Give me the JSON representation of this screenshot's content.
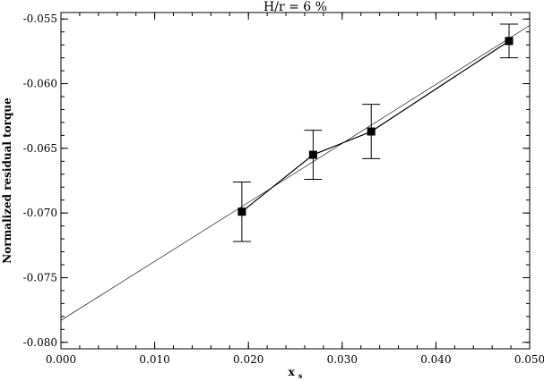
{
  "chart_data": {
    "type": "scatter",
    "title": "H/r = 6 %",
    "xlabel": "x",
    "xlabel_subscript": "s",
    "ylabel": "Normalized residual torque",
    "xlim": [
      0.0,
      0.05
    ],
    "ylim": [
      -0.0805,
      -0.0545
    ],
    "xticks": [
      0.0,
      0.01,
      0.02,
      0.03,
      0.04,
      0.05
    ],
    "xtick_labels": [
      "0.000",
      "0.010",
      "0.020",
      "0.030",
      "0.040",
      "0.050"
    ],
    "yticks": [
      -0.08,
      -0.075,
      -0.07,
      -0.065,
      -0.06,
      -0.055
    ],
    "ytick_labels": [
      "-0.080",
      "-0.075",
      "-0.070",
      "-0.065",
      "-0.060",
      "-0.055"
    ],
    "grid": false,
    "series": [
      {
        "x": [
          0.0193,
          0.0269,
          0.0331,
          0.0478
        ],
        "y": [
          -0.0699,
          -0.0655,
          -0.0637,
          -0.0567
        ],
        "yerr": [
          0.0023,
          0.0019,
          0.0021,
          0.0013
        ],
        "marker": "square",
        "connected": true
      }
    ],
    "fit_line": {
      "x": [
        0.0,
        0.05
      ],
      "y": [
        -0.0783,
        -0.0555
      ]
    }
  }
}
